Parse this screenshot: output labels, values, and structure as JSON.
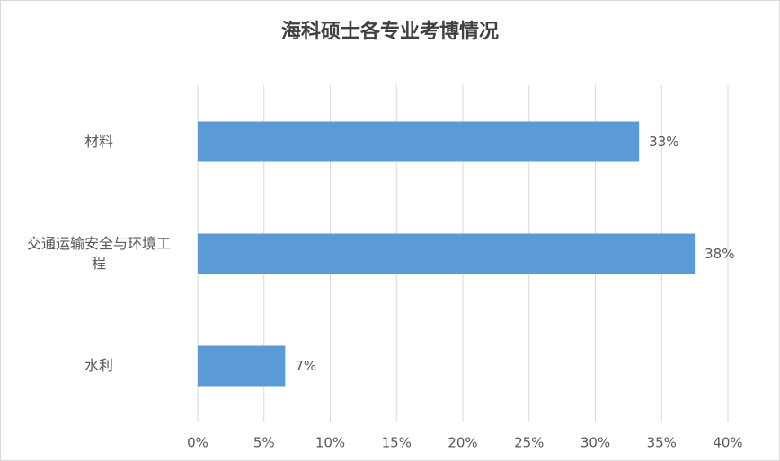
{
  "chart_data": {
    "type": "barh",
    "title": "海科硕士各专业考博情况",
    "categories": [
      "材料",
      "交通运输安全与环境工程",
      "水利"
    ],
    "values": [
      33.3,
      37.5,
      6.6
    ],
    "value_labels": [
      "33%",
      "38%",
      "7%"
    ],
    "color": "#5b9bd5",
    "xlim": [
      0,
      40
    ],
    "xticks": [
      {
        "value": 0,
        "label": "0%"
      },
      {
        "value": 5,
        "label": "5%"
      },
      {
        "value": 10,
        "label": "10%"
      },
      {
        "value": 15,
        "label": "15%"
      },
      {
        "value": 20,
        "label": "20%"
      },
      {
        "value": 25,
        "label": "25%"
      },
      {
        "value": 30,
        "label": "30%"
      },
      {
        "value": 35,
        "label": "35%"
      },
      {
        "value": 40,
        "label": "40%"
      }
    ],
    "grid": true
  }
}
